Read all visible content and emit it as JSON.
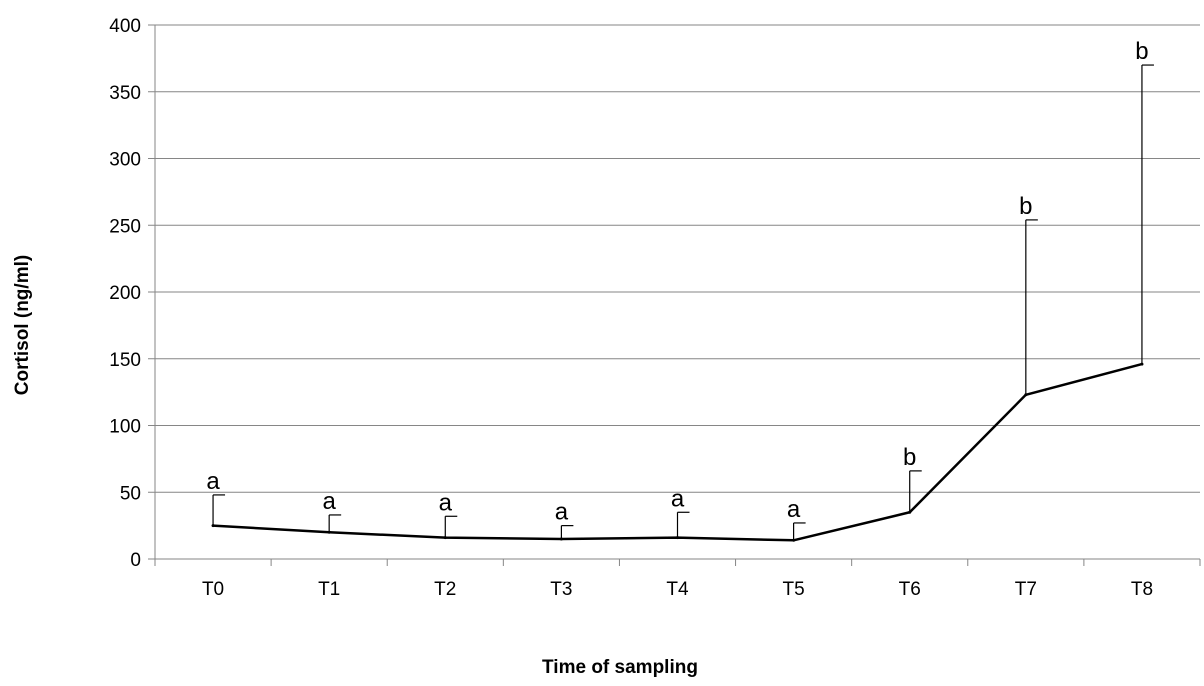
{
  "chart_data": {
    "type": "line",
    "title": "",
    "xlabel": "Time of sampling",
    "ylabel": "Cortisol (ng/ml)",
    "ylim": [
      0,
      400
    ],
    "yticks": [
      0,
      50,
      100,
      150,
      200,
      250,
      300,
      350,
      400
    ],
    "grid": true,
    "legend": "none",
    "categories": [
      "T0",
      "T1",
      "T2",
      "T3",
      "T4",
      "T5",
      "T6",
      "T7",
      "T8"
    ],
    "series": [
      {
        "values": [
          25,
          20,
          16,
          15,
          16,
          14,
          35,
          123,
          146
        ],
        "error_upper": [
          48,
          33,
          32,
          25,
          35,
          27,
          66,
          254,
          370
        ],
        "labels": [
          "a",
          "a",
          "a",
          "a",
          "a",
          "a",
          "b",
          "b",
          "b"
        ],
        "color": "#000000"
      }
    ]
  }
}
